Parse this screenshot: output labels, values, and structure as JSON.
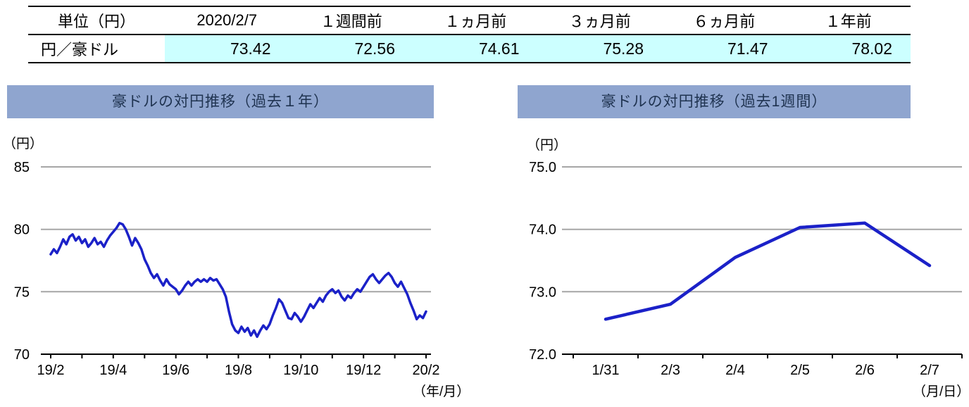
{
  "table": {
    "headers": [
      "単位（円）",
      "2020/2/7",
      "１週間前",
      "１ヵ月前",
      "３ヵ月前",
      "６ヵ月前",
      "１年前"
    ],
    "row_label": "円／豪ドル",
    "values": [
      "73.42",
      "72.56",
      "74.61",
      "75.28",
      "71.47",
      "78.02"
    ]
  },
  "colors": {
    "table_highlight": "#CCFFFF",
    "panel_header_bg": "#8FA5CF",
    "panel_header_text": "#1F3350",
    "line": "#1B21C8",
    "grid": "#A6A6A6",
    "axis": "#000000"
  },
  "chart_data": [
    {
      "type": "line",
      "title": "豪ドルの対円推移（過去１年）",
      "ylabel": "（円）",
      "xlabel": "（年/月）",
      "ylim": [
        70,
        85
      ],
      "yticks": [
        70,
        75,
        80,
        85
      ],
      "ytick_labels": [
        "70",
        "75",
        "80",
        "85"
      ],
      "xtick_labels": [
        "19/2",
        "19/4",
        "19/6",
        "19/8",
        "19/10",
        "19/12",
        "20/2"
      ],
      "grid": true,
      "legend": "none",
      "line_color": "#1B21C8",
      "series": [
        {
          "name": "円／豪ドル",
          "values": [
            78.0,
            78.4,
            78.1,
            78.6,
            79.2,
            78.8,
            79.4,
            79.6,
            79.1,
            79.4,
            78.9,
            79.2,
            78.6,
            78.9,
            79.3,
            78.8,
            79.0,
            78.6,
            79.1,
            79.5,
            79.8,
            80.1,
            80.5,
            80.4,
            80.0,
            79.4,
            78.7,
            79.3,
            78.9,
            78.4,
            77.6,
            77.1,
            76.5,
            76.1,
            76.4,
            75.9,
            75.5,
            76.0,
            75.6,
            75.4,
            75.2,
            74.8,
            75.1,
            75.5,
            75.8,
            75.5,
            75.8,
            76.0,
            75.8,
            76.0,
            75.8,
            76.1,
            75.9,
            76.0,
            75.6,
            75.2,
            74.6,
            73.4,
            72.4,
            71.9,
            71.7,
            72.2,
            71.8,
            72.1,
            71.5,
            71.9,
            71.4,
            71.9,
            72.3,
            72.0,
            72.4,
            73.1,
            73.7,
            74.4,
            74.1,
            73.5,
            72.9,
            72.8,
            73.3,
            73.0,
            72.6,
            73.0,
            73.5,
            74.0,
            73.7,
            74.1,
            74.5,
            74.2,
            74.7,
            75.0,
            75.2,
            74.9,
            75.1,
            74.6,
            74.3,
            74.7,
            74.5,
            74.9,
            75.2,
            75.0,
            75.4,
            75.8,
            76.2,
            76.4,
            76.0,
            75.7,
            76.0,
            76.3,
            76.5,
            76.2,
            75.7,
            75.4,
            75.8,
            75.3,
            74.8,
            74.1,
            73.5,
            72.8,
            73.1,
            72.9,
            73.42
          ]
        }
      ]
    },
    {
      "type": "line",
      "title": "豪ドルの対円推移（過去1週間）",
      "ylabel": "（円）",
      "xlabel": "（月/日）",
      "ylim": [
        72.0,
        75.0
      ],
      "yticks": [
        72.0,
        73.0,
        74.0,
        75.0
      ],
      "ytick_labels": [
        "72.0",
        "73.0",
        "74.0",
        "75.0"
      ],
      "categories": [
        "1/31",
        "2/3",
        "2/4",
        "2/5",
        "2/6",
        "2/7"
      ],
      "values": [
        72.56,
        72.8,
        73.55,
        74.03,
        74.1,
        73.42
      ],
      "grid": true,
      "legend": "none",
      "line_color": "#1B21C8"
    }
  ]
}
